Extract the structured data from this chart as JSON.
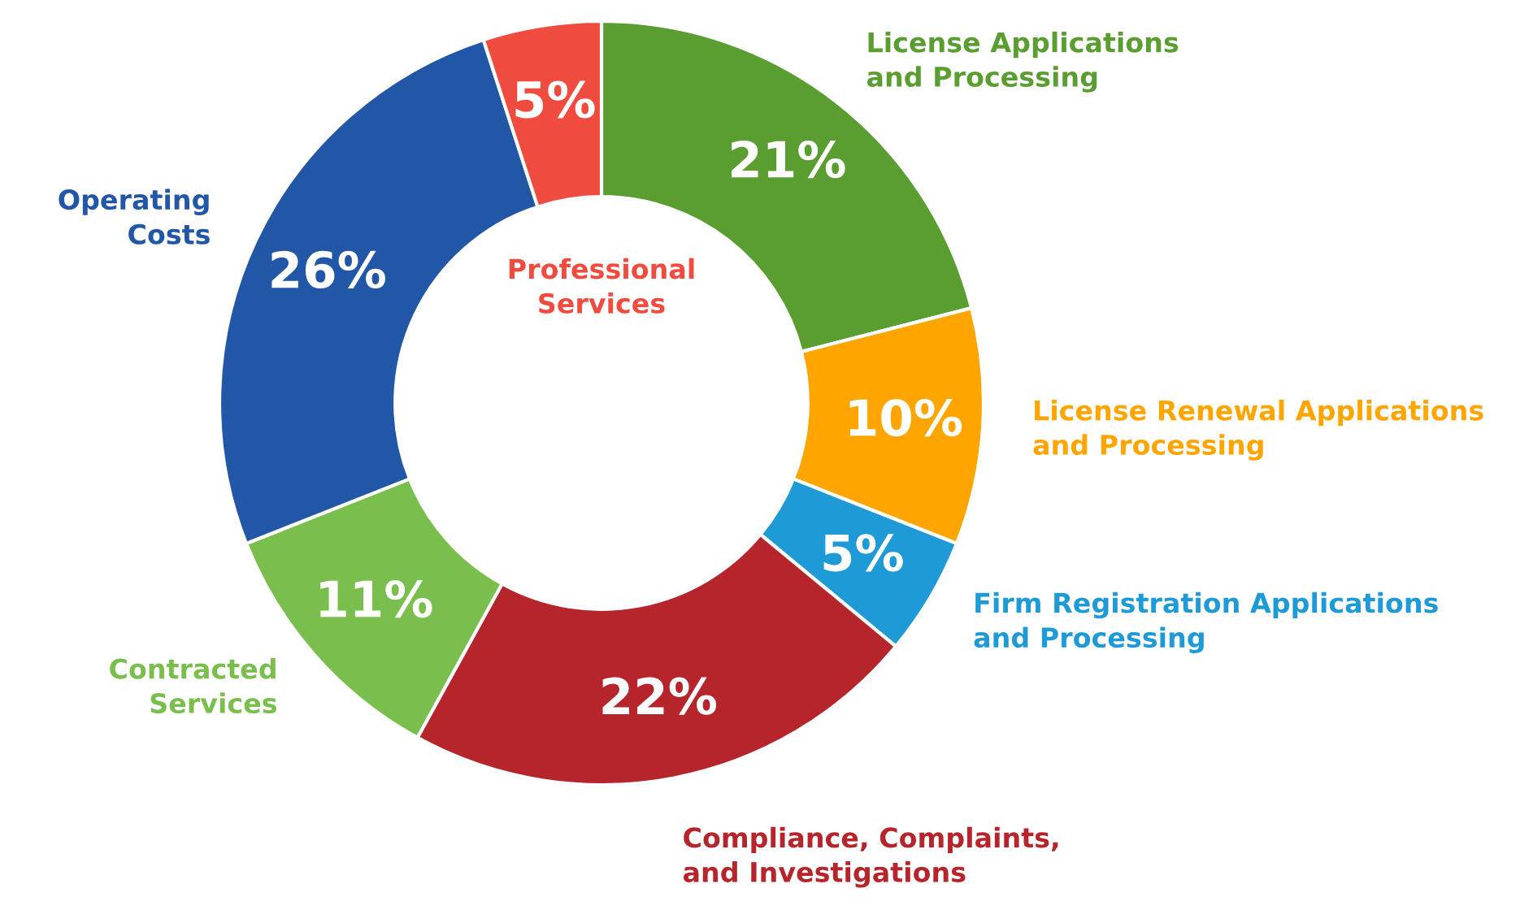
{
  "chart_data": {
    "type": "donut",
    "categories": [
      "License Applications and Processing",
      "License Renewal Applications and Processing",
      "Firm Registration Applications and Processing",
      "Compliance, Complaints, and Investigations",
      "Contracted Services",
      "Operating Costs",
      "Professional Services"
    ],
    "values": [
      21,
      10,
      5,
      22,
      11,
      26,
      5
    ],
    "colors": [
      "#5a9e32",
      "#ffa500",
      "#1e9ad6",
      "#b5252b",
      "#7abf4e",
      "#2157a6",
      "#ef4b3f"
    ],
    "value_labels": [
      "21%",
      "10%",
      "5%",
      "22%",
      "11%",
      "26%",
      "5%"
    ]
  }
}
